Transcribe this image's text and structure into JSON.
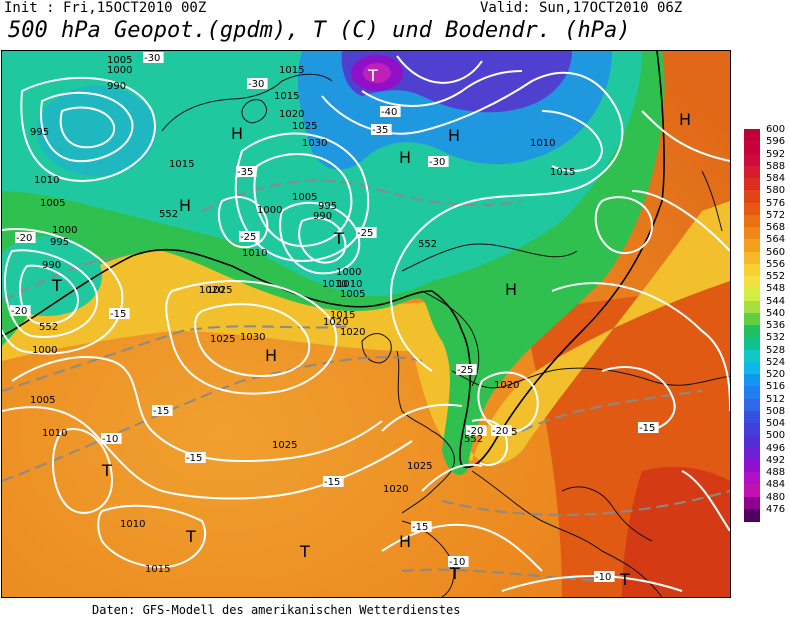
{
  "header": {
    "init": "Init : Fri,15OCT2010 00Z",
    "valid": "Valid: Sun,17OCT2010 06Z",
    "title": "500 hPa Geopot.(gpdm), T (C) und Bodendr. (hPa)"
  },
  "footer": "Daten: GFS-Modell des amerikanischen Wetterdienstes",
  "legend": {
    "levels": [
      "600",
      "596",
      "592",
      "588",
      "584",
      "580",
      "576",
      "572",
      "568",
      "564",
      "560",
      "556",
      "552",
      "548",
      "544",
      "540",
      "536",
      "532",
      "528",
      "524",
      "520",
      "516",
      "512",
      "508",
      "504",
      "500",
      "496",
      "492",
      "488",
      "484",
      "480",
      "476"
    ],
    "colors": [
      "#c1003a",
      "#c8003c",
      "#d10a3c",
      "#d71c30",
      "#dc2e20",
      "#e14416",
      "#e55a10",
      "#ea7010",
      "#ee8818",
      "#f2a020",
      "#f6b828",
      "#f8d030",
      "#f0e040",
      "#d4ee40",
      "#a4e040",
      "#60d040",
      "#20c060",
      "#10c090",
      "#10c8c8",
      "#10b8e8",
      "#1098f0",
      "#2080f0",
      "#3068e8",
      "#3850e0",
      "#4040d8",
      "#5030d0",
      "#7020d0",
      "#9010d0",
      "#b010c8",
      "#c010b0",
      "#900090",
      "#500060"
    ]
  },
  "map": {
    "contour_labels": [
      "1005",
      "1000",
      "990",
      "995",
      "1015",
      "1015",
      "1020",
      "1025",
      "1030",
      "1005",
      "990",
      "995",
      "1000",
      "1010",
      "1020",
      "1025",
      "1010",
      "1015",
      "990",
      "995",
      "1000",
      "1005",
      "1010",
      "1020",
      "1025",
      "1000",
      "1005",
      "1000",
      "1010",
      "1005",
      "1015",
      "1020",
      "1025",
      "1030",
      "1025",
      "1020",
      "1015",
      "1010",
      "1005",
      "1010",
      "1010",
      "1015",
      "1020"
    ],
    "pressure_centers": [
      {
        "label": "T",
        "kind": "low"
      },
      {
        "label": "T",
        "kind": "low"
      },
      {
        "label": "T",
        "kind": "low"
      },
      {
        "label": "T",
        "kind": "low"
      },
      {
        "label": "T",
        "kind": "low"
      },
      {
        "label": "T",
        "kind": "low"
      },
      {
        "label": "T",
        "kind": "low"
      },
      {
        "label": "T",
        "kind": "low"
      },
      {
        "label": "H",
        "kind": "high"
      },
      {
        "label": "H",
        "kind": "high"
      },
      {
        "label": "H",
        "kind": "high"
      },
      {
        "label": "H",
        "kind": "high"
      },
      {
        "label": "H",
        "kind": "high"
      },
      {
        "label": "H",
        "kind": "high"
      },
      {
        "label": "H",
        "kind": "high"
      },
      {
        "label": "H",
        "kind": "high"
      }
    ],
    "temperature_labels": [
      "-30",
      "-30",
      "-35",
      "-40",
      "-35",
      "-30",
      "-25",
      "-25",
      "-20",
      "-20",
      "-15",
      "-15",
      "-15",
      "-15",
      "-10",
      "-10",
      "-15",
      "-20",
      "-25",
      "-20",
      "-15",
      "-10"
    ],
    "geopotential_label": "552"
  }
}
